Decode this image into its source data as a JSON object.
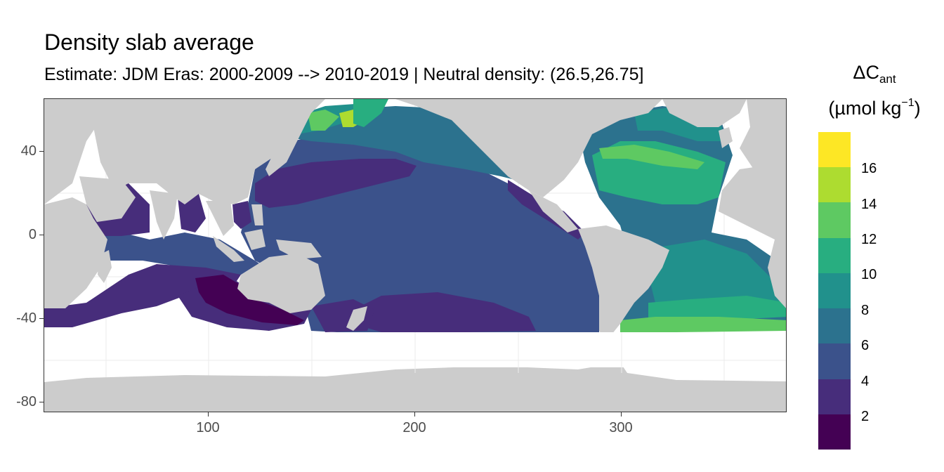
{
  "title": "Density slab average",
  "subtitle": "Estimate: JDM Eras: 2000-2009 --> 2010-2019 | Neutral density: (26.5,26.75]",
  "map": {
    "x_ticks": [
      "100",
      "200",
      "300"
    ],
    "y_ticks": [
      "40",
      "0",
      "-40",
      "-80"
    ],
    "land_color": "#cccccc",
    "missing_color": "#ffffff"
  },
  "legend": {
    "title_main": "ΔC",
    "title_sub": "ant",
    "unit_prefix": "(µmol kg",
    "unit_sup": "−1",
    "unit_suffix": ")",
    "labels": [
      "16",
      "14",
      "12",
      "10",
      "8",
      "6",
      "4",
      "2"
    ],
    "colors": [
      "#fde725",
      "#addc30",
      "#5ec962",
      "#28ae80",
      "#21918c",
      "#2c728e",
      "#3b528b",
      "#472d7b",
      "#440154"
    ]
  }
}
